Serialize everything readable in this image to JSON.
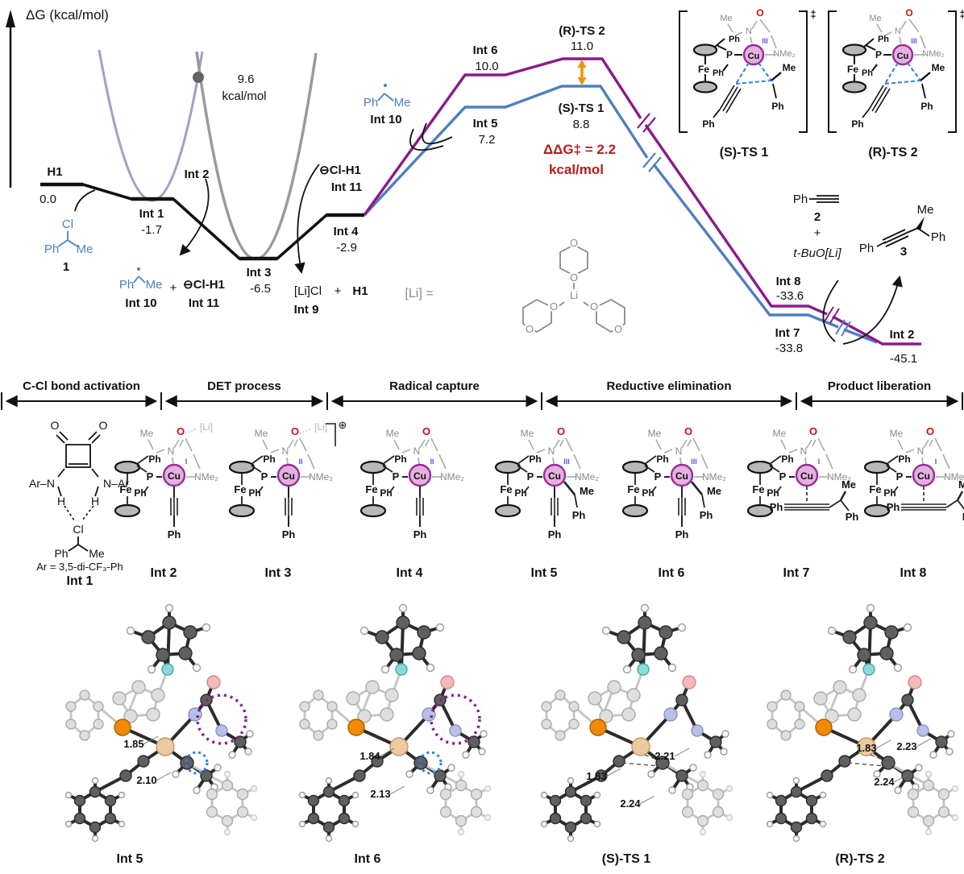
{
  "axis": {
    "label": "ΔG (kcal/mol)"
  },
  "energy_profile": {
    "type": "reaction-energy-diagram",
    "unit": "kcal/mol",
    "levels": [
      {
        "id": "h1",
        "label": "H1",
        "energy": "0.0"
      },
      {
        "id": "int1",
        "label": "Int 1",
        "energy": "-1.7"
      },
      {
        "id": "int2",
        "label": "Int 2",
        "energy": ""
      },
      {
        "id": "int3",
        "label": "Int 3",
        "energy": "-6.5"
      },
      {
        "id": "int4",
        "label": "Int 4",
        "energy": "-2.9"
      },
      {
        "id": "int5",
        "label": "Int 5",
        "energy": "7.2"
      },
      {
        "id": "int6",
        "label": "Int 6",
        "energy": "10.0"
      },
      {
        "id": "ts1",
        "label": "(S)-TS 1",
        "energy": "8.8"
      },
      {
        "id": "ts2",
        "label": "(R)-TS 2",
        "energy": "11.0"
      },
      {
        "id": "int7",
        "label": "Int 7",
        "energy": "-33.8"
      },
      {
        "id": "int8",
        "label": "Int 8",
        "energy": "-33.6"
      },
      {
        "id": "int2_final",
        "label": "Int 2",
        "energy": "-45.1"
      }
    ],
    "crossing": {
      "value": "9.6",
      "unit": "kcal/mol"
    },
    "ddg": {
      "line1": "ΔΔG‡ = 2.2",
      "line2": "kcal/mol"
    },
    "colors": {
      "black_path": "#111111",
      "s_path": "#4f7fc0",
      "r_path": "#8a1a8a",
      "parabola_left": "#a89cc8",
      "parabola_right": "#9a9a9a",
      "crossing_dot": "#636363",
      "ddg_text": "#b01f1f",
      "gap_arrow": "#f0920a"
    }
  },
  "species": {
    "substrate": {
      "cl": "Cl",
      "ph": "Ph",
      "me": "Me",
      "number": "1"
    },
    "radical_low": {
      "ph": "Ph",
      "me": "Me",
      "label": "Int 10"
    },
    "plus_low": "+",
    "chloride_low": {
      "text": "⊖Cl-H1",
      "label": "Int 11"
    },
    "chloride_mid": {
      "text": "⊖Cl-H1",
      "label": "Int 11"
    },
    "licl": {
      "salt": "[Li]Cl",
      "plus": "+",
      "hb": "H1",
      "label": "Int 9"
    },
    "radical_mid": {
      "ph": "Ph",
      "me": "Me",
      "label": "Int 10"
    },
    "li_legend": {
      "eq": "[Li] =",
      "li": "Li",
      "o": "O"
    },
    "alkyne": {
      "ph": "Ph",
      "number": "2"
    },
    "plus_right": "+",
    "tbuoli": "t-BuO[Li]",
    "product": {
      "me": "Me",
      "ph_right": "Ph",
      "ph_left": "Ph",
      "number": "3"
    }
  },
  "ts_inset": {
    "dagger": "‡",
    "panels": [
      {
        "label": "(S)-TS 1"
      },
      {
        "label": "(R)-TS 2"
      }
    ]
  },
  "stages": {
    "labels": [
      "C-Cl bond activation",
      "DET process",
      "Radical capture",
      "Reductive elimination",
      "Product liberation"
    ]
  },
  "structure_row": {
    "int1_panel": {
      "o_left": "O",
      "o_right": "O",
      "arn": "Ar–N",
      "nar": "N–Ar",
      "h_left": "H",
      "h_right": "H",
      "cl": "Cl",
      "ph": "Ph",
      "me": "Me",
      "note": "Ar = 3,5-di-CF₃-Ph",
      "label": "Int 1"
    },
    "core_atoms": {
      "me": "Me",
      "o": "O",
      "li": "[Li]",
      "charge": "⊕",
      "ph_top": "Ph",
      "n": "N",
      "nme2": "NMe₂",
      "p": "P",
      "fe": "Fe",
      "ph_p": "Ph",
      "cu": "Cu",
      "ph_alkynyl": "Ph",
      "me_alkyl": "Me",
      "ph_alkyl": "Ph"
    },
    "panels": [
      {
        "label": "Int 2",
        "ox": "I",
        "has_li": true,
        "charged": false,
        "ligand": "alkynyl"
      },
      {
        "label": "Int 3",
        "ox": "II",
        "has_li": true,
        "charged": true,
        "ligand": "alkynyl"
      },
      {
        "label": "Int 4",
        "ox": "II",
        "has_li": false,
        "charged": false,
        "ligand": "alkynyl"
      },
      {
        "label": "Int 5",
        "ox": "III",
        "has_li": false,
        "charged": false,
        "ligand": "alkynyl_alkyl"
      },
      {
        "label": "Int 6",
        "ox": "III",
        "has_li": false,
        "charged": false,
        "ligand": "alkynyl_alkyl"
      },
      {
        "label": "Int 7",
        "ox": "I",
        "has_li": false,
        "charged": false,
        "ligand": "pi_product"
      },
      {
        "label": "Int 8",
        "ox": "I",
        "has_li": false,
        "charged": false,
        "ligand": "pi_product"
      }
    ]
  },
  "models_3d": [
    {
      "label": "Int 5",
      "bonds": [
        "1.85",
        "2.10"
      ],
      "highlighted": true
    },
    {
      "label": "Int 6",
      "bonds": [
        "1.84",
        "2.13"
      ],
      "highlighted": true
    },
    {
      "label": "(S)-TS 1",
      "bonds": [
        "1.83",
        "2.21",
        "2.24"
      ],
      "highlighted": false
    },
    {
      "label": "(R)-TS 2",
      "bonds": [
        "1.83",
        "2.23",
        "2.24"
      ],
      "highlighted": false
    }
  ]
}
